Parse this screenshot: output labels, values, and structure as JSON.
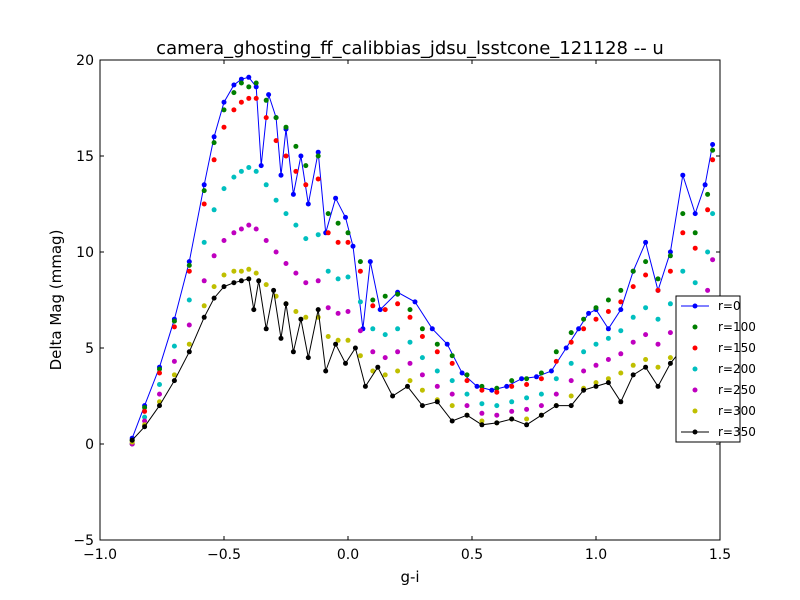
{
  "chart_data": {
    "type": "scatter",
    "title": "camera_ghosting_ff_calibbias_jdsu_lsstcone_121128 -- u",
    "xlabel": "g-i",
    "ylabel": "Delta Mag (mmag)",
    "xlim": [
      -1.0,
      1.5
    ],
    "ylim": [
      -5,
      20
    ],
    "xticks": [
      -1.0,
      -0.5,
      0.0,
      0.5,
      1.0,
      1.5
    ],
    "xtick_labels": [
      "−1.0",
      "−0.5",
      "0.0",
      "0.5",
      "1.0",
      "1.5"
    ],
    "yticks": [
      -5,
      0,
      5,
      10,
      15,
      20
    ],
    "ytick_labels": [
      "−5",
      "0",
      "5",
      "10",
      "15",
      "20"
    ],
    "grid": false,
    "legend_position": "right",
    "series": [
      {
        "name": "r=0",
        "color": "#0000ff",
        "style": "line-dot",
        "x": [
          -0.87,
          -0.82,
          -0.76,
          -0.7,
          -0.64,
          -0.58,
          -0.54,
          -0.5,
          -0.46,
          -0.43,
          -0.4,
          -0.37,
          -0.35,
          -0.32,
          -0.29,
          -0.27,
          -0.25,
          -0.22,
          -0.19,
          -0.16,
          -0.12,
          -0.09,
          -0.05,
          -0.01,
          0.02,
          0.06,
          0.09,
          0.13,
          0.2,
          0.27,
          0.34,
          0.4,
          0.46,
          0.52,
          0.58,
          0.64,
          0.7,
          0.76,
          0.82,
          0.88,
          0.93,
          0.97,
          1.0,
          1.05,
          1.1,
          1.15,
          1.2,
          1.25,
          1.3,
          1.35,
          1.4,
          1.44,
          1.47
        ],
        "y": [
          0.3,
          2.0,
          4.0,
          6.5,
          9.5,
          13.5,
          16.0,
          17.8,
          18.7,
          19.0,
          19.1,
          18.6,
          14.5,
          18.2,
          17.0,
          14.0,
          16.4,
          13.0,
          15.0,
          12.5,
          15.2,
          11.0,
          12.8,
          11.8,
          10.3,
          6.0,
          9.5,
          7.0,
          7.9,
          7.4,
          6.0,
          5.2,
          3.7,
          3.0,
          2.8,
          3.0,
          3.4,
          3.5,
          3.8,
          5.0,
          6.0,
          6.8,
          7.0,
          6.0,
          7.0,
          9.0,
          10.5,
          8.0,
          10.0,
          14.0,
          12.0,
          13.5,
          15.6
        ]
      },
      {
        "name": "r=100",
        "color": "#007f00",
        "style": "dot",
        "x": [
          -0.87,
          -0.82,
          -0.76,
          -0.7,
          -0.64,
          -0.58,
          -0.54,
          -0.5,
          -0.46,
          -0.43,
          -0.4,
          -0.37,
          -0.33,
          -0.29,
          -0.25,
          -0.21,
          -0.17,
          -0.12,
          -0.08,
          -0.04,
          0.0,
          0.05,
          0.1,
          0.15,
          0.2,
          0.25,
          0.3,
          0.36,
          0.42,
          0.48,
          0.54,
          0.6,
          0.66,
          0.72,
          0.78,
          0.84,
          0.9,
          0.95,
          1.0,
          1.05,
          1.1,
          1.15,
          1.2,
          1.25,
          1.3,
          1.35,
          1.4,
          1.45,
          1.47
        ],
        "y": [
          0.2,
          1.9,
          3.9,
          6.4,
          9.3,
          13.2,
          15.7,
          17.4,
          18.3,
          18.8,
          18.6,
          18.8,
          17.9,
          17.0,
          16.5,
          15.5,
          14.5,
          15.0,
          12.0,
          11.5,
          11.0,
          9.5,
          7.5,
          7.7,
          7.8,
          7.0,
          6.0,
          5.2,
          4.6,
          3.6,
          3.0,
          2.9,
          3.3,
          3.4,
          3.7,
          4.8,
          5.8,
          6.5,
          7.1,
          7.5,
          8.0,
          9.0,
          9.5,
          8.6,
          9.8,
          12.0,
          11.0,
          13.0,
          15.3
        ]
      },
      {
        "name": "r=150",
        "color": "#ff0000",
        "style": "dot",
        "x": [
          -0.87,
          -0.82,
          -0.76,
          -0.7,
          -0.64,
          -0.58,
          -0.54,
          -0.5,
          -0.46,
          -0.43,
          -0.4,
          -0.37,
          -0.33,
          -0.29,
          -0.25,
          -0.21,
          -0.17,
          -0.12,
          -0.08,
          -0.04,
          0.0,
          0.05,
          0.1,
          0.15,
          0.2,
          0.25,
          0.3,
          0.36,
          0.42,
          0.48,
          0.54,
          0.6,
          0.66,
          0.72,
          0.78,
          0.84,
          0.9,
          0.95,
          1.0,
          1.05,
          1.1,
          1.15,
          1.2,
          1.25,
          1.3,
          1.35,
          1.4,
          1.45,
          1.47
        ],
        "y": [
          0.0,
          1.7,
          3.7,
          6.1,
          9.0,
          12.5,
          14.8,
          16.5,
          17.4,
          17.8,
          18.0,
          18.0,
          17.0,
          15.8,
          15.0,
          14.2,
          13.5,
          13.8,
          11.0,
          10.5,
          10.5,
          9.0,
          7.2,
          7.0,
          7.3,
          6.6,
          5.6,
          4.8,
          4.2,
          3.3,
          2.8,
          2.7,
          3.0,
          3.1,
          3.4,
          4.3,
          5.3,
          6.0,
          6.5,
          6.9,
          7.4,
          8.2,
          8.8,
          8.0,
          9.0,
          11.0,
          10.2,
          12.2,
          14.8
        ]
      },
      {
        "name": "r=200",
        "color": "#00bfbf",
        "style": "dot",
        "x": [
          -0.87,
          -0.82,
          -0.76,
          -0.7,
          -0.64,
          -0.58,
          -0.54,
          -0.5,
          -0.46,
          -0.43,
          -0.4,
          -0.37,
          -0.33,
          -0.29,
          -0.25,
          -0.21,
          -0.17,
          -0.12,
          -0.08,
          -0.04,
          0.0,
          0.05,
          0.1,
          0.15,
          0.2,
          0.25,
          0.3,
          0.36,
          0.42,
          0.48,
          0.54,
          0.6,
          0.66,
          0.72,
          0.78,
          0.84,
          0.9,
          0.95,
          1.0,
          1.05,
          1.1,
          1.15,
          1.2,
          1.25,
          1.3,
          1.35,
          1.4,
          1.45,
          1.47
        ],
        "y": [
          0.0,
          1.4,
          3.1,
          5.1,
          7.5,
          10.5,
          12.2,
          13.3,
          13.9,
          14.2,
          14.4,
          14.2,
          13.5,
          12.7,
          12.0,
          11.4,
          10.7,
          10.9,
          9.0,
          8.6,
          8.7,
          7.4,
          6.0,
          5.7,
          6.0,
          5.3,
          4.5,
          3.8,
          3.3,
          2.6,
          2.1,
          2.0,
          2.2,
          2.4,
          2.6,
          3.4,
          4.2,
          4.8,
          5.2,
          5.5,
          5.9,
          6.6,
          7.1,
          6.5,
          7.3,
          9.0,
          8.4,
          10.0,
          12.0
        ]
      },
      {
        "name": "r=250",
        "color": "#bf00bf",
        "style": "dot",
        "x": [
          -0.87,
          -0.82,
          -0.76,
          -0.7,
          -0.64,
          -0.58,
          -0.54,
          -0.5,
          -0.46,
          -0.43,
          -0.4,
          -0.37,
          -0.33,
          -0.29,
          -0.25,
          -0.21,
          -0.17,
          -0.12,
          -0.08,
          -0.04,
          0.0,
          0.05,
          0.1,
          0.15,
          0.2,
          0.25,
          0.3,
          0.36,
          0.42,
          0.48,
          0.54,
          0.6,
          0.66,
          0.72,
          0.78,
          0.84,
          0.9,
          0.95,
          1.0,
          1.05,
          1.1,
          1.15,
          1.2,
          1.25,
          1.3,
          1.35,
          1.4,
          1.45,
          1.47
        ],
        "y": [
          0.0,
          1.2,
          2.6,
          4.3,
          6.2,
          8.5,
          9.8,
          10.6,
          11.0,
          11.2,
          11.4,
          11.2,
          10.6,
          10.0,
          9.4,
          8.9,
          8.4,
          8.5,
          7.1,
          6.8,
          6.9,
          5.9,
          4.8,
          4.5,
          4.8,
          4.2,
          3.6,
          3.0,
          2.6,
          2.0,
          1.6,
          1.5,
          1.7,
          1.8,
          2.0,
          2.6,
          3.3,
          3.8,
          4.1,
          4.4,
          4.7,
          5.3,
          5.7,
          5.2,
          5.8,
          7.2,
          6.7,
          8.0,
          9.6
        ]
      },
      {
        "name": "r=300",
        "color": "#bfbf00",
        "style": "dot",
        "x": [
          -0.87,
          -0.82,
          -0.76,
          -0.7,
          -0.64,
          -0.58,
          -0.54,
          -0.5,
          -0.46,
          -0.43,
          -0.4,
          -0.37,
          -0.33,
          -0.29,
          -0.25,
          -0.21,
          -0.17,
          -0.12,
          -0.08,
          -0.04,
          0.0,
          0.05,
          0.1,
          0.15,
          0.2,
          0.25,
          0.3,
          0.36,
          0.42,
          0.48,
          0.54,
          0.6,
          0.66,
          0.72,
          0.78,
          0.84,
          0.9,
          0.95,
          1.0,
          1.05,
          1.1,
          1.15,
          1.2,
          1.25,
          1.3,
          1.35,
          1.4,
          1.45,
          1.47
        ],
        "y": [
          0.1,
          1.0,
          2.2,
          3.6,
          5.2,
          7.2,
          8.2,
          8.8,
          9.0,
          9.0,
          9.1,
          8.9,
          8.3,
          7.7,
          7.3,
          6.9,
          6.6,
          6.6,
          5.6,
          5.4,
          5.4,
          4.6,
          3.8,
          3.6,
          3.8,
          3.3,
          2.8,
          2.3,
          2.0,
          1.5,
          1.2,
          1.1,
          1.3,
          1.3,
          1.5,
          2.0,
          2.5,
          2.9,
          3.2,
          3.4,
          3.7,
          4.1,
          4.4,
          4.0,
          4.5,
          5.6,
          5.2,
          6.2,
          7.4
        ]
      },
      {
        "name": "r=350",
        "color": "#000000",
        "style": "line-dot",
        "x": [
          -0.87,
          -0.82,
          -0.76,
          -0.7,
          -0.64,
          -0.58,
          -0.54,
          -0.5,
          -0.46,
          -0.43,
          -0.4,
          -0.38,
          -0.36,
          -0.33,
          -0.3,
          -0.27,
          -0.25,
          -0.22,
          -0.19,
          -0.16,
          -0.12,
          -0.09,
          -0.05,
          -0.01,
          0.03,
          0.07,
          0.12,
          0.18,
          0.24,
          0.3,
          0.36,
          0.42,
          0.48,
          0.54,
          0.6,
          0.66,
          0.72,
          0.78,
          0.84,
          0.9,
          0.95,
          1.0,
          1.05,
          1.1,
          1.15,
          1.2,
          1.25,
          1.3,
          1.35,
          1.4,
          1.44,
          1.47
        ],
        "y": [
          0.2,
          0.9,
          2.0,
          3.3,
          4.8,
          6.6,
          7.6,
          8.2,
          8.4,
          8.5,
          8.6,
          7.0,
          8.5,
          6.0,
          8.0,
          5.5,
          7.3,
          4.8,
          6.5,
          4.5,
          7.0,
          3.8,
          5.2,
          4.2,
          5.0,
          3.0,
          4.0,
          2.5,
          3.0,
          2.0,
          2.2,
          1.2,
          1.5,
          1.0,
          1.1,
          1.3,
          1.0,
          1.5,
          2.0,
          2.0,
          2.8,
          3.0,
          3.2,
          2.2,
          3.6,
          4.0,
          3.0,
          4.2,
          5.0,
          4.8,
          6.0,
          7.2
        ]
      }
    ]
  }
}
